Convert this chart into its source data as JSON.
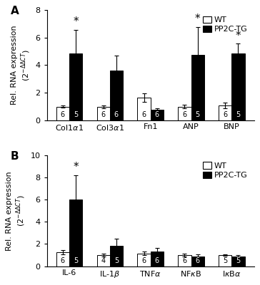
{
  "panel_A": {
    "wt_values": [
      1.0,
      1.0,
      1.65,
      1.0,
      1.1
    ],
    "tg_values": [
      4.85,
      3.6,
      0.75,
      4.75,
      4.85
    ],
    "wt_errors": [
      0.07,
      0.1,
      0.3,
      0.15,
      0.2
    ],
    "tg_errors": [
      1.7,
      1.1,
      0.15,
      2.0,
      0.7
    ],
    "wt_n": [
      "6",
      "6",
      "6",
      "6",
      "6"
    ],
    "tg_n": [
      "5",
      "6",
      "6",
      "5",
      "5"
    ],
    "sig": [
      true,
      false,
      false,
      true,
      true
    ],
    "ylim": [
      0,
      8
    ],
    "yticks": [
      0,
      2,
      4,
      6,
      8
    ]
  },
  "panel_B": {
    "wt_values": [
      1.25,
      1.0,
      1.15,
      1.0,
      1.0
    ],
    "tg_values": [
      6.05,
      1.85,
      1.35,
      0.9,
      0.9
    ],
    "wt_errors": [
      0.2,
      0.1,
      0.15,
      0.1,
      0.05
    ],
    "tg_errors": [
      2.2,
      0.65,
      0.3,
      0.15,
      0.1
    ],
    "wt_n": [
      "6",
      "4",
      "6",
      "6",
      "5"
    ],
    "tg_n": [
      "5",
      "5",
      "6",
      "6",
      "5"
    ],
    "sig": [
      true,
      false,
      false,
      false,
      false
    ],
    "ylim": [
      0,
      10
    ],
    "yticks": [
      0,
      2,
      4,
      6,
      8,
      10
    ]
  },
  "bar_width": 0.32,
  "wt_color": "white",
  "tg_color": "black",
  "edge_color": "black",
  "legend_labels": [
    "WT",
    "PP2C-TG"
  ],
  "panel_labels": [
    "A",
    "B"
  ],
  "n_fontsize": 7,
  "axis_fontsize": 8,
  "ylabel_fontsize": 8,
  "tick_fontsize": 8,
  "star_fontsize": 11,
  "legend_fontsize": 8
}
